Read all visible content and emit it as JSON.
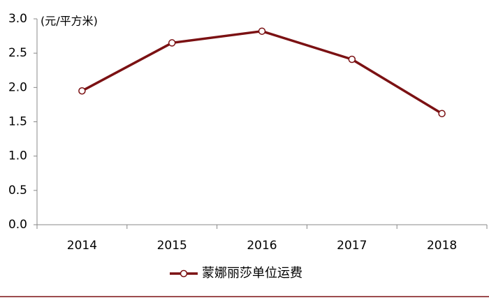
{
  "chart_data": {
    "type": "line",
    "y_label": "(元/平方米)",
    "categories": [
      "2014",
      "2015",
      "2016",
      "2017",
      "2018"
    ],
    "series": [
      {
        "name": "蒙娜丽莎单位运费",
        "color": "#7b1113",
        "values": [
          1.95,
          2.65,
          2.82,
          2.41,
          1.62
        ]
      }
    ],
    "ylim": [
      0,
      3
    ],
    "yticks": [
      {
        "value": 0,
        "label": "0.0"
      },
      0.5,
      {
        "value": 1,
        "label": "1.0"
      },
      1.5,
      {
        "value": 2,
        "label": "2.0"
      },
      2.5,
      {
        "value": 3,
        "label": "3.0"
      }
    ],
    "grid": false,
    "legend": "bottom"
  }
}
